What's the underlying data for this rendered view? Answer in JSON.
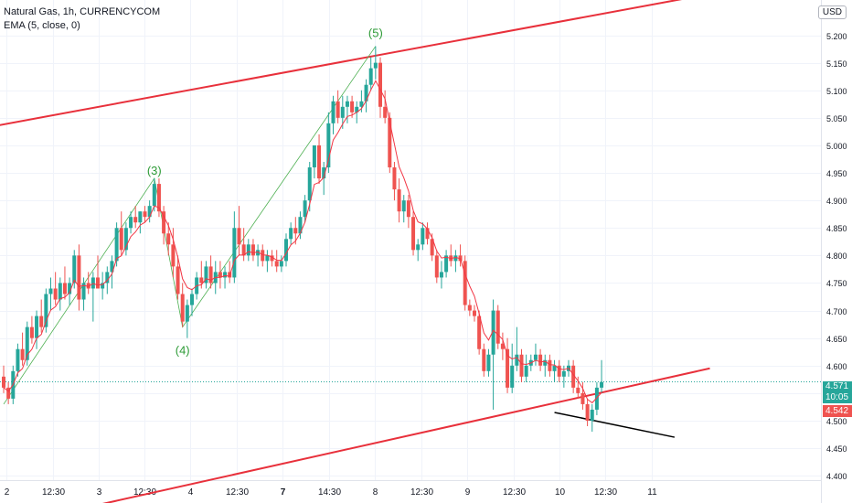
{
  "legend": {
    "symbol": "Natural Gas, 1h, CURRENCYCOM",
    "indicator": "EMA (5, close, 0)"
  },
  "currency": "USD",
  "last_price": "4.571",
  "countdown": "10:05",
  "ema_value": "4.542",
  "colors": {
    "up": "#26a69a",
    "down": "#ef5350",
    "ema": "#f23645",
    "channel": "#e8303b",
    "wave_line": "#4caf50",
    "wave_label": "#2e9b37",
    "grid": "#f0f3fa"
  },
  "chart_data": {
    "type": "candlestick",
    "title": "Natural Gas, 1h, CURRENCYCOM",
    "y_ticks": [
      "5.200",
      "5.150",
      "5.100",
      "5.050",
      "5.000",
      "4.950",
      "4.900",
      "4.850",
      "4.800",
      "4.750",
      "4.700",
      "4.650",
      "4.600",
      "4.550",
      "4.500",
      "4.450",
      "4.400"
    ],
    "y_tick_values": [
      5.2,
      5.15,
      5.1,
      5.05,
      5.0,
      4.95,
      4.9,
      4.85,
      4.8,
      4.75,
      4.7,
      4.65,
      4.6,
      4.55,
      4.5,
      4.45,
      4.4
    ],
    "ylim": [
      4.397,
      5.262
    ],
    "x_ticks": [
      "2",
      "12:30",
      "3",
      "12:30",
      "4",
      "12:30",
      "7",
      "14:30",
      "8",
      "12:30",
      "9",
      "12:30",
      "10",
      "12:30",
      "11"
    ],
    "x_tick_bars": [
      0.6,
      10.5,
      20.1,
      29.9,
      39.7,
      49.5,
      59.3,
      69.1,
      78.9,
      88.7,
      98.4,
      108.3,
      118.0,
      127.8,
      137.6
    ],
    "x_tick_bold": [
      false,
      false,
      false,
      false,
      false,
      false,
      true,
      false,
      false,
      false,
      false,
      false,
      false,
      false,
      false
    ],
    "grid": true,
    "candles": [
      [
        4.58,
        4.6,
        4.55,
        4.56
      ],
      [
        4.56,
        4.57,
        4.53,
        4.54
      ],
      [
        4.54,
        4.6,
        4.53,
        4.59
      ],
      [
        4.59,
        4.64,
        4.58,
        4.63
      ],
      [
        4.63,
        4.66,
        4.6,
        4.61
      ],
      [
        4.61,
        4.68,
        4.6,
        4.67
      ],
      [
        4.67,
        4.69,
        4.64,
        4.65
      ],
      [
        4.65,
        4.7,
        4.63,
        4.69
      ],
      [
        4.69,
        4.72,
        4.66,
        4.67
      ],
      [
        4.67,
        4.74,
        4.66,
        4.73
      ],
      [
        4.73,
        4.76,
        4.7,
        4.74
      ],
      [
        4.74,
        4.77,
        4.71,
        4.72
      ],
      [
        4.72,
        4.76,
        4.7,
        4.75
      ],
      [
        4.75,
        4.78,
        4.72,
        4.73
      ],
      [
        4.73,
        4.76,
        4.71,
        4.75
      ],
      [
        4.75,
        4.81,
        4.74,
        4.8
      ],
      [
        4.8,
        4.82,
        4.7,
        4.72
      ],
      [
        4.72,
        4.76,
        4.7,
        4.75
      ],
      [
        4.75,
        4.77,
        4.73,
        4.74
      ],
      [
        4.74,
        4.77,
        4.68,
        4.76
      ],
      [
        4.76,
        4.8,
        4.74,
        4.74
      ],
      [
        4.74,
        4.77,
        4.72,
        4.75
      ],
      [
        4.75,
        4.78,
        4.73,
        4.77
      ],
      [
        4.77,
        4.8,
        4.74,
        4.79
      ],
      [
        4.79,
        4.86,
        4.78,
        4.85
      ],
      [
        4.85,
        4.88,
        4.8,
        4.81
      ],
      [
        4.81,
        4.86,
        4.8,
        4.85
      ],
      [
        4.85,
        4.88,
        4.84,
        4.87
      ],
      [
        4.87,
        4.89,
        4.85,
        4.86
      ],
      [
        4.86,
        4.88,
        4.84,
        4.88
      ],
      [
        4.88,
        4.89,
        4.86,
        4.87
      ],
      [
        4.87,
        4.9,
        4.86,
        4.89
      ],
      [
        4.89,
        4.94,
        4.88,
        4.93
      ],
      [
        4.93,
        4.94,
        4.87,
        4.88
      ],
      [
        4.88,
        4.89,
        4.82,
        4.84
      ],
      [
        4.84,
        4.86,
        4.8,
        4.82
      ],
      [
        4.82,
        4.85,
        4.76,
        4.78
      ],
      [
        4.78,
        4.8,
        4.72,
        4.73
      ],
      [
        4.73,
        4.75,
        4.67,
        4.68
      ],
      [
        4.68,
        4.72,
        4.65,
        4.71
      ],
      [
        4.71,
        4.74,
        4.69,
        4.73
      ],
      [
        4.73,
        4.77,
        4.72,
        4.76
      ],
      [
        4.76,
        4.79,
        4.74,
        4.75
      ],
      [
        4.75,
        4.79,
        4.74,
        4.78
      ],
      [
        4.78,
        4.8,
        4.74,
        4.75
      ],
      [
        4.75,
        4.79,
        4.73,
        4.77
      ],
      [
        4.77,
        4.79,
        4.74,
        4.76
      ],
      [
        4.76,
        4.78,
        4.74,
        4.77
      ],
      [
        4.77,
        4.79,
        4.75,
        4.76
      ],
      [
        4.76,
        4.88,
        4.75,
        4.85
      ],
      [
        4.85,
        4.89,
        4.8,
        4.82
      ],
      [
        4.82,
        4.85,
        4.79,
        4.8
      ],
      [
        4.8,
        4.83,
        4.79,
        4.82
      ],
      [
        4.82,
        4.83,
        4.79,
        4.8
      ],
      [
        4.8,
        4.82,
        4.78,
        4.81
      ],
      [
        4.81,
        4.82,
        4.78,
        4.79
      ],
      [
        4.79,
        4.81,
        4.77,
        4.8
      ],
      [
        4.8,
        4.81,
        4.78,
        4.79
      ],
      [
        4.79,
        4.81,
        4.77,
        4.78
      ],
      [
        4.78,
        4.8,
        4.77,
        4.79
      ],
      [
        4.79,
        4.84,
        4.78,
        4.83
      ],
      [
        4.83,
        4.86,
        4.82,
        4.85
      ],
      [
        4.85,
        4.87,
        4.82,
        4.84
      ],
      [
        4.84,
        4.88,
        4.83,
        4.87
      ],
      [
        4.87,
        4.91,
        4.86,
        4.9
      ],
      [
        4.9,
        4.97,
        4.88,
        4.96
      ],
      [
        4.96,
        5.0,
        4.94,
        5.0
      ],
      [
        5.0,
        5.02,
        4.93,
        4.94
      ],
      [
        4.94,
        4.97,
        4.91,
        4.96
      ],
      [
        4.96,
        5.06,
        4.95,
        5.04
      ],
      [
        5.04,
        5.09,
        5.02,
        5.08
      ],
      [
        5.08,
        5.1,
        5.04,
        5.05
      ],
      [
        5.05,
        5.09,
        5.03,
        5.07
      ],
      [
        5.07,
        5.09,
        5.04,
        5.08
      ],
      [
        5.08,
        5.09,
        5.05,
        5.06
      ],
      [
        5.06,
        5.08,
        5.04,
        5.07
      ],
      [
        5.07,
        5.1,
        5.06,
        5.08
      ],
      [
        5.08,
        5.12,
        5.06,
        5.11
      ],
      [
        5.11,
        5.16,
        5.1,
        5.14
      ],
      [
        5.14,
        5.18,
        5.12,
        5.15
      ],
      [
        5.15,
        5.16,
        5.05,
        5.07
      ],
      [
        5.07,
        5.1,
        5.04,
        5.05
      ],
      [
        5.05,
        5.06,
        4.95,
        4.96
      ],
      [
        4.96,
        4.97,
        4.9,
        4.92
      ],
      [
        4.92,
        4.94,
        4.86,
        4.88
      ],
      [
        4.88,
        4.91,
        4.86,
        4.9
      ],
      [
        4.9,
        4.91,
        4.85,
        4.87
      ],
      [
        4.87,
        4.88,
        4.8,
        4.81
      ],
      [
        4.81,
        4.83,
        4.79,
        4.82
      ],
      [
        4.82,
        4.86,
        4.81,
        4.85
      ],
      [
        4.85,
        4.86,
        4.82,
        4.83
      ],
      [
        4.83,
        4.84,
        4.79,
        4.8
      ],
      [
        4.8,
        4.81,
        4.75,
        4.76
      ],
      [
        4.76,
        4.79,
        4.74,
        4.77
      ],
      [
        4.77,
        4.81,
        4.76,
        4.8
      ],
      [
        4.8,
        4.82,
        4.78,
        4.79
      ],
      [
        4.79,
        4.81,
        4.77,
        4.8
      ],
      [
        4.8,
        4.82,
        4.78,
        4.79
      ],
      [
        4.79,
        4.8,
        4.7,
        4.71
      ],
      [
        4.71,
        4.72,
        4.69,
        4.7
      ],
      [
        4.7,
        4.71,
        4.68,
        4.69
      ],
      [
        4.69,
        4.7,
        4.62,
        4.63
      ],
      [
        4.63,
        4.64,
        4.58,
        4.59
      ],
      [
        4.59,
        4.63,
        4.58,
        4.62
      ],
      [
        4.62,
        4.72,
        4.52,
        4.7
      ],
      [
        4.7,
        4.71,
        4.63,
        4.64
      ],
      [
        4.64,
        4.66,
        4.61,
        4.63
      ],
      [
        4.63,
        4.65,
        4.55,
        4.56
      ],
      [
        4.56,
        4.64,
        4.55,
        4.6
      ],
      [
        4.6,
        4.67,
        4.59,
        4.62
      ],
      [
        4.62,
        4.63,
        4.57,
        4.58
      ],
      [
        4.58,
        4.62,
        4.57,
        4.6
      ],
      [
        4.6,
        4.62,
        4.59,
        4.61
      ],
      [
        4.61,
        4.64,
        4.6,
        4.62
      ],
      [
        4.62,
        4.63,
        4.59,
        4.6
      ],
      [
        4.6,
        4.62,
        4.58,
        4.61
      ],
      [
        4.61,
        4.62,
        4.58,
        4.59
      ],
      [
        4.59,
        4.61,
        4.57,
        4.6
      ],
      [
        4.6,
        4.61,
        4.57,
        4.58
      ],
      [
        4.58,
        4.6,
        4.56,
        4.59
      ],
      [
        4.59,
        4.61,
        4.58,
        4.6
      ],
      [
        4.6,
        4.61,
        4.55,
        4.56
      ],
      [
        4.56,
        4.58,
        4.54,
        4.55
      ],
      [
        4.55,
        4.57,
        4.52,
        4.53
      ],
      [
        4.53,
        4.54,
        4.49,
        4.5
      ],
      [
        4.5,
        4.53,
        4.48,
        4.52
      ],
      [
        4.52,
        4.57,
        4.51,
        4.56
      ],
      [
        4.56,
        4.61,
        4.55,
        4.57
      ]
    ],
    "channel_upper": [
      [
        -2,
        5.035
      ],
      [
        150,
        5.275
      ]
    ],
    "channel_lower": [
      [
        -2,
        4.305
      ],
      [
        150,
        4.595
      ]
    ],
    "divergence_line": [
      [
        117.0,
        4.515
      ],
      [
        142.5,
        4.47
      ]
    ],
    "wave_labels": [
      {
        "label": "(3)",
        "bar": 32,
        "price": 4.93
      },
      {
        "label": "(4)",
        "bar": 38,
        "price": 4.66
      },
      {
        "label": "(5)",
        "bar": 79,
        "price": 5.18
      }
    ]
  }
}
